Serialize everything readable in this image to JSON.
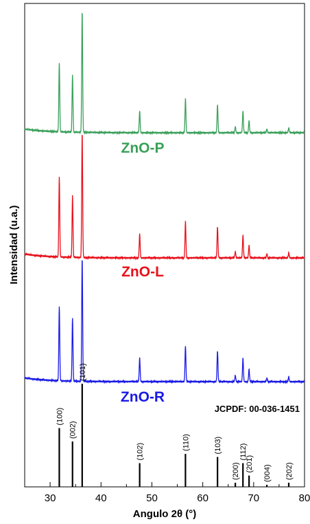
{
  "chart_data": {
    "type": "line",
    "xlabel": "Angulo 2θ (°)",
    "ylabel": "Intensidad  (u.a.)",
    "xlim": [
      25,
      80
    ],
    "xticks": [
      30,
      40,
      50,
      60,
      70,
      80
    ],
    "grid": false,
    "series": [
      {
        "name": "ZnO-P",
        "color": "#3aa05a",
        "baseline": 0.03,
        "peaks": [
          {
            "x": 31.8,
            "y": 0.57
          },
          {
            "x": 34.4,
            "y": 0.47
          },
          {
            "x": 36.3,
            "y": 1.0
          },
          {
            "x": 47.6,
            "y": 0.18
          },
          {
            "x": 56.6,
            "y": 0.28
          },
          {
            "x": 62.9,
            "y": 0.23
          },
          {
            "x": 66.4,
            "y": 0.05
          },
          {
            "x": 67.9,
            "y": 0.18
          },
          {
            "x": 69.1,
            "y": 0.1
          },
          {
            "x": 72.6,
            "y": 0.03
          },
          {
            "x": 76.9,
            "y": 0.04
          }
        ]
      },
      {
        "name": "ZnO-L",
        "color": "#e8101a",
        "baseline": 0.03,
        "peaks": [
          {
            "x": 31.8,
            "y": 0.64
          },
          {
            "x": 34.4,
            "y": 0.49
          },
          {
            "x": 36.3,
            "y": 1.0
          },
          {
            "x": 47.6,
            "y": 0.19
          },
          {
            "x": 56.6,
            "y": 0.29
          },
          {
            "x": 62.9,
            "y": 0.25
          },
          {
            "x": 66.4,
            "y": 0.05
          },
          {
            "x": 67.9,
            "y": 0.18
          },
          {
            "x": 69.1,
            "y": 0.1
          },
          {
            "x": 72.6,
            "y": 0.03
          },
          {
            "x": 76.9,
            "y": 0.04
          }
        ]
      },
      {
        "name": "ZnO-R",
        "color": "#1a1ae6",
        "baseline": 0.03,
        "peaks": [
          {
            "x": 31.8,
            "y": 0.6
          },
          {
            "x": 34.4,
            "y": 0.51
          },
          {
            "x": 36.3,
            "y": 1.0
          },
          {
            "x": 47.6,
            "y": 0.19
          },
          {
            "x": 56.6,
            "y": 0.29
          },
          {
            "x": 62.9,
            "y": 0.25
          },
          {
            "x": 66.4,
            "y": 0.05
          },
          {
            "x": 67.9,
            "y": 0.19
          },
          {
            "x": 69.1,
            "y": 0.1
          },
          {
            "x": 72.6,
            "y": 0.03
          },
          {
            "x": 76.9,
            "y": 0.04
          }
        ]
      }
    ],
    "reference": {
      "label": "JCPDF: 00-036-1451",
      "lines": [
        {
          "x": 31.8,
          "hkl": "(100)",
          "intensity": 0.57
        },
        {
          "x": 34.4,
          "hkl": "(002)",
          "intensity": 0.44
        },
        {
          "x": 36.3,
          "hkl": "(101)",
          "intensity": 1.0
        },
        {
          "x": 47.6,
          "hkl": "(102)",
          "intensity": 0.23
        },
        {
          "x": 56.6,
          "hkl": "(110)",
          "intensity": 0.32
        },
        {
          "x": 62.9,
          "hkl": "(103)",
          "intensity": 0.29
        },
        {
          "x": 66.4,
          "hkl": "(200)",
          "intensity": 0.04
        },
        {
          "x": 67.9,
          "hkl": "(112)",
          "intensity": 0.23
        },
        {
          "x": 69.1,
          "hkl": "(201)",
          "intensity": 0.11
        },
        {
          "x": 72.6,
          "hkl": "(004)",
          "intensity": 0.02
        },
        {
          "x": 76.9,
          "hkl": "(202)",
          "intensity": 0.04
        }
      ]
    }
  }
}
